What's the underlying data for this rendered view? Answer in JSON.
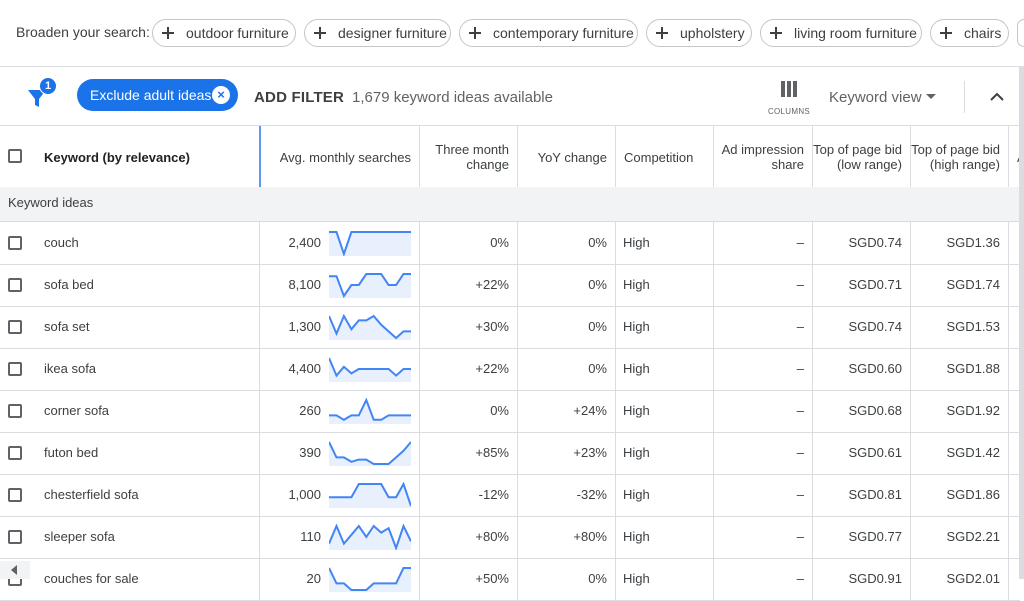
{
  "broaden": {
    "label": "Broaden your search:",
    "chips": [
      "outdoor furniture",
      "designer furniture",
      "contemporary furniture",
      "upholstery",
      "living room furniture",
      "chairs"
    ]
  },
  "toolbar": {
    "filter_badge": "1",
    "exclude_chip": "Exclude adult ideas",
    "exclude_close": "×",
    "add_filter": "ADD FILTER",
    "available": "1,679 keyword ideas available",
    "columns_label": "COLUMNS",
    "keyword_view": "Keyword view"
  },
  "table": {
    "headers": {
      "keyword": "Keyword (by relevance)",
      "avg": "Avg. monthly searches",
      "three_month": "Three month change",
      "yoy": "YoY change",
      "competition": "Competition",
      "ad_share": "Ad impression share",
      "bid_low": "Top of page bid (low range)",
      "bid_high": "Top of page bid (high range)",
      "cut": "A"
    },
    "group_label": "Keyword ideas",
    "rows": [
      {
        "keyword": "couch",
        "avg": "2,400",
        "three": "0%",
        "yoy": "0%",
        "comp": "High",
        "share": "–",
        "low": "SGD0.74",
        "high": "SGD1.36",
        "trend": [
          1,
          1,
          0,
          1,
          1,
          1,
          1,
          1,
          1,
          1,
          1,
          1
        ]
      },
      {
        "keyword": "sofa bed",
        "avg": "8,100",
        "three": "+22%",
        "yoy": "0%",
        "comp": "High",
        "share": "–",
        "low": "SGD0.71",
        "high": "SGD1.74",
        "trend": [
          0.9,
          0.9,
          0,
          0.5,
          0.5,
          1,
          1,
          1,
          0.5,
          0.5,
          1,
          1
        ]
      },
      {
        "keyword": "sofa set",
        "avg": "1,300",
        "three": "+30%",
        "yoy": "0%",
        "comp": "High",
        "share": "–",
        "low": "SGD0.74",
        "high": "SGD1.53",
        "trend": [
          1,
          0.2,
          1,
          0.4,
          0.8,
          0.8,
          1,
          0.6,
          0.3,
          0,
          0.3,
          0.3
        ]
      },
      {
        "keyword": "ikea sofa",
        "avg": "4,400",
        "three": "+22%",
        "yoy": "0%",
        "comp": "High",
        "share": "–",
        "low": "SGD0.60",
        "high": "SGD1.88",
        "trend": [
          1,
          0.2,
          0.6,
          0.3,
          0.5,
          0.5,
          0.5,
          0.5,
          0.5,
          0.2,
          0.5,
          0.5
        ]
      },
      {
        "keyword": "corner sofa",
        "avg": "260",
        "three": "0%",
        "yoy": "+24%",
        "comp": "High",
        "share": "–",
        "low": "SGD0.68",
        "high": "SGD1.92",
        "trend": [
          0.3,
          0.3,
          0.1,
          0.3,
          0.3,
          1,
          0.1,
          0.1,
          0.3,
          0.3,
          0.3,
          0.3
        ]
      },
      {
        "keyword": "futon bed",
        "avg": "390",
        "three": "+85%",
        "yoy": "+23%",
        "comp": "High",
        "share": "–",
        "low": "SGD0.61",
        "high": "SGD1.42",
        "trend": [
          1,
          0.3,
          0.3,
          0.1,
          0.2,
          0.2,
          0,
          0,
          0,
          0.3,
          0.6,
          1
        ]
      },
      {
        "keyword": "chesterfield sofa",
        "avg": "1,000",
        "three": "-12%",
        "yoy": "-32%",
        "comp": "High",
        "share": "–",
        "low": "SGD0.81",
        "high": "SGD1.86",
        "trend": [
          0.4,
          0.4,
          0.4,
          0.4,
          1,
          1,
          1,
          1,
          0.4,
          0.4,
          1,
          0
        ]
      },
      {
        "keyword": "sleeper sofa",
        "avg": "110",
        "three": "+80%",
        "yoy": "+80%",
        "comp": "High",
        "share": "–",
        "low": "SGD0.77",
        "high": "SGD2.21",
        "trend": [
          0.2,
          1,
          0.2,
          0.6,
          1,
          0.5,
          1,
          0.7,
          0.9,
          0,
          1,
          0.3
        ]
      },
      {
        "keyword": "couches for sale",
        "avg": "20",
        "three": "+50%",
        "yoy": "0%",
        "comp": "High",
        "share": "–",
        "low": "SGD0.91",
        "high": "SGD2.01",
        "trend": [
          1,
          0.3,
          0.3,
          0,
          0,
          0,
          0.3,
          0.3,
          0.3,
          0.3,
          1,
          1
        ]
      }
    ]
  },
  "colors": {
    "accent": "#1a73e8",
    "spark_fill": "#e8f0fe",
    "spark_line": "#4285f4"
  }
}
